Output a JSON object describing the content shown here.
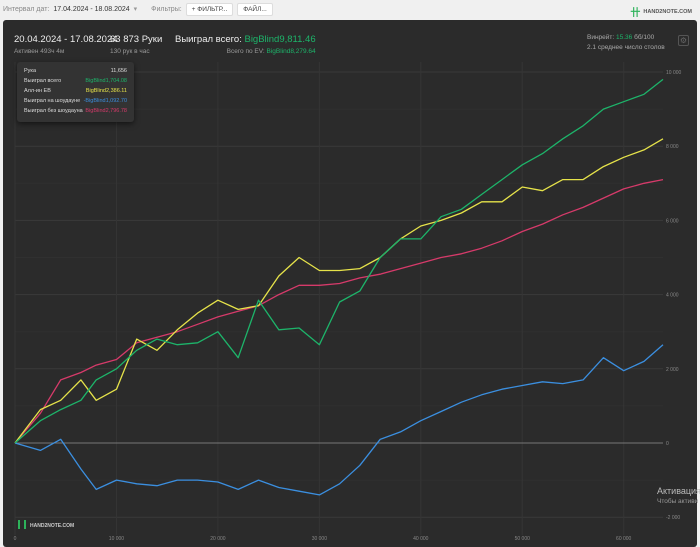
{
  "filters": {
    "date_label": "Интервал дат:",
    "date_value": "17.04.2024 - 18.08.2024",
    "filters_label": "Фильтры:",
    "filter_button": "ФИЛЬТР...",
    "file_button": "ФАЙЛ...",
    "brand": "HAND2NOTE.COM"
  },
  "summary": {
    "period": "20.04.2024 - 17.08.2024",
    "active": "Активен 493ч 4м",
    "hands": "63 873 Руки",
    "hands_per_hour": "130 рук в час",
    "won_label": "Выиграл всего:",
    "won_value": "BigBlind9,811.46",
    "ev_label": "Всего по EV:",
    "ev_value": "BigBlind8,279.64",
    "winrate_label": "Винрейт:",
    "winrate_value": "15.36",
    "winrate_unit": "бб/100",
    "tables": "2.1 среднее число столов"
  },
  "tooltip": {
    "hand_label": "Рука",
    "hand_value": "11,656",
    "rows": [
      {
        "label": "Выиграл всего",
        "value": "BigBlind1,704.08",
        "color": "#1db46a"
      },
      {
        "label": "Алл-ин EB",
        "value": "BigBlind2,386.11",
        "color": "#e6e34a"
      },
      {
        "label": "Выиграл на шоудауне",
        "value": "-BigBlind1,092.70",
        "color": "#3b8fe0"
      },
      {
        "label": "Выиграл без шоудауна",
        "value": "BigBlind2,796.78",
        "color": "#d63a6a"
      }
    ]
  },
  "watermark": {
    "title": "Активация",
    "sub": "Чтобы активи"
  },
  "chart_data": {
    "type": "line",
    "xlim": [
      0,
      63873
    ],
    "ylim": [
      -2000,
      10000
    ],
    "x_ticks": [
      "0",
      "10 000",
      "20 000",
      "30 000",
      "40 000",
      "50 000",
      "60 000"
    ],
    "x_tick_values": [
      0,
      10000,
      20000,
      30000,
      40000,
      50000,
      60000
    ],
    "y_ticks": [
      "-2 000",
      "0",
      "2 000",
      "4 000",
      "6 000",
      "8 000",
      "10 000"
    ],
    "y_tick_values": [
      -2000,
      0,
      2000,
      4000,
      6000,
      8000,
      10000
    ],
    "x": [
      0,
      2500,
      4500,
      6500,
      8000,
      10000,
      12000,
      14000,
      16000,
      18000,
      20000,
      22000,
      24000,
      26000,
      28000,
      30000,
      32000,
      34000,
      36000,
      38000,
      40000,
      42000,
      44000,
      46000,
      48000,
      50000,
      52000,
      54000,
      56000,
      58000,
      60000,
      62000,
      63873
    ],
    "series": [
      {
        "name": "Выиграл без шоудауна",
        "color": "#d63a6a",
        "values": [
          0,
          800,
          1700,
          1900,
          2100,
          2250,
          2700,
          2850,
          3000,
          3200,
          3400,
          3550,
          3700,
          4000,
          4250,
          4250,
          4300,
          4450,
          4550,
          4700,
          4850,
          5000,
          5100,
          5250,
          5450,
          5700,
          5900,
          6150,
          6350,
          6600,
          6850,
          7000,
          7100
        ]
      },
      {
        "name": "Выиграл на шоудауне",
        "color": "#3b8fe0",
        "values": [
          0,
          -200,
          100,
          -700,
          -1250,
          -1000,
          -1100,
          -1150,
          -1000,
          -1000,
          -1050,
          -1250,
          -1000,
          -1200,
          -1300,
          -1400,
          -1100,
          -600,
          100,
          300,
          600,
          850,
          1100,
          1300,
          1450,
          1550,
          1650,
          1600,
          1700,
          2300,
          1950,
          2200,
          2650
        ]
      },
      {
        "name": "Алл-ин EB",
        "color": "#e6e34a",
        "values": [
          0,
          900,
          1150,
          1700,
          1150,
          1450,
          2800,
          2500,
          3050,
          3500,
          3850,
          3600,
          3700,
          4500,
          5000,
          4650,
          4650,
          4700,
          5000,
          5500,
          5850,
          6000,
          6200,
          6500,
          6500,
          6900,
          6800,
          7100,
          7100,
          7450,
          7700,
          7900,
          8200
        ]
      },
      {
        "name": "Выиграл всего",
        "color": "#1db46a",
        "values": [
          0,
          600,
          900,
          1150,
          1700,
          2000,
          2500,
          2800,
          2650,
          2700,
          3000,
          2300,
          3850,
          3050,
          3100,
          2650,
          3800,
          4100,
          5000,
          5500,
          5500,
          6100,
          6300,
          6700,
          7100,
          7500,
          7800,
          8200,
          8550,
          9000,
          9200,
          9400,
          9800
        ]
      }
    ]
  }
}
